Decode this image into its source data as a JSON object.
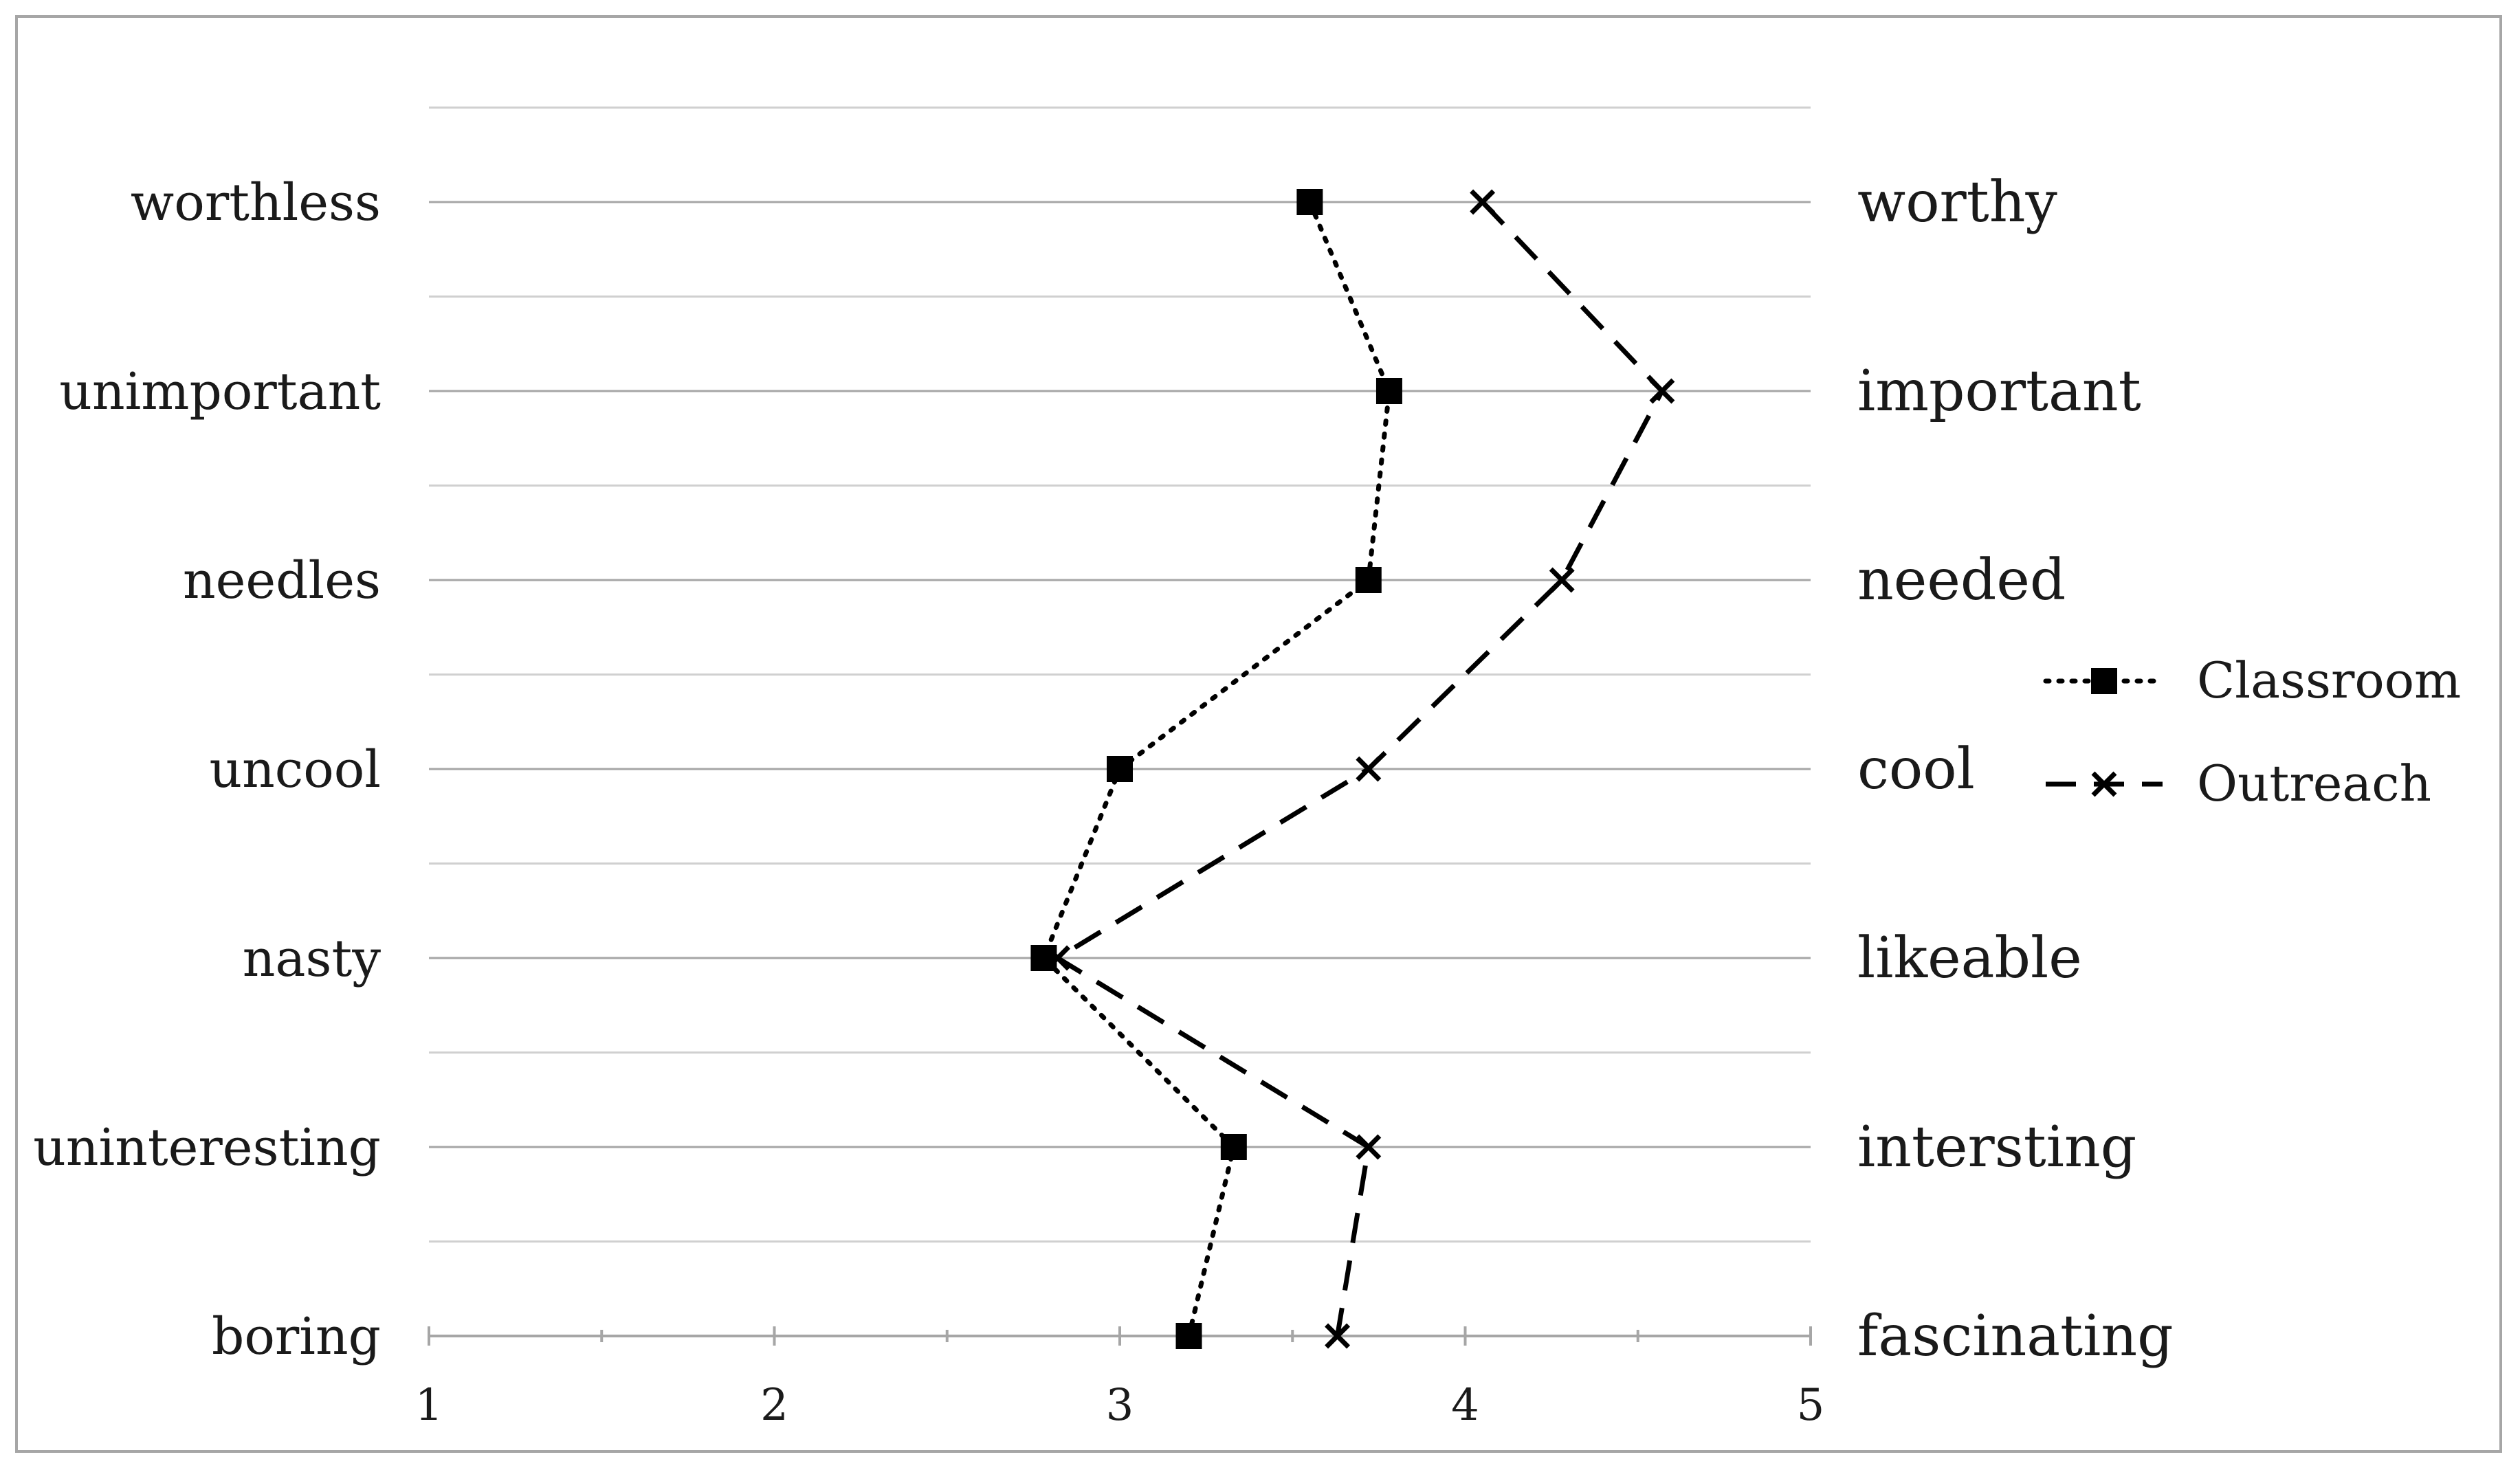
{
  "chart_data": {
    "type": "line",
    "orientation": "horizontal",
    "x": {
      "min": 1,
      "max": 5,
      "ticks": [
        "1",
        "2",
        "3",
        "4",
        "5"
      ],
      "minor_step": 0.5
    },
    "rows": [
      {
        "left": "worthless",
        "right": "worthy"
      },
      {
        "left": "unimportant",
        "right": "important"
      },
      {
        "left": "needles",
        "right": "needed"
      },
      {
        "left": "uncool",
        "right": "cool"
      },
      {
        "left": "nasty",
        "right": "likeable"
      },
      {
        "left": "uninteresting",
        "right": "intersting"
      },
      {
        "left": "boring",
        "right": "fascinating"
      }
    ],
    "series": [
      {
        "name": "Classroom",
        "marker": "square",
        "line": "dotted",
        "values": [
          3.55,
          3.78,
          3.72,
          3.0,
          2.78,
          3.33,
          3.2
        ]
      },
      {
        "name": "Outreach",
        "marker": "x",
        "line": "dashed",
        "values": [
          4.05,
          4.57,
          4.28,
          3.72,
          2.82,
          3.72,
          3.63
        ]
      }
    ],
    "grid": true,
    "legend": "right",
    "colors": {
      "series": "#000000",
      "grid": "#a6a6a6",
      "frame": "#a6a6a6"
    }
  }
}
